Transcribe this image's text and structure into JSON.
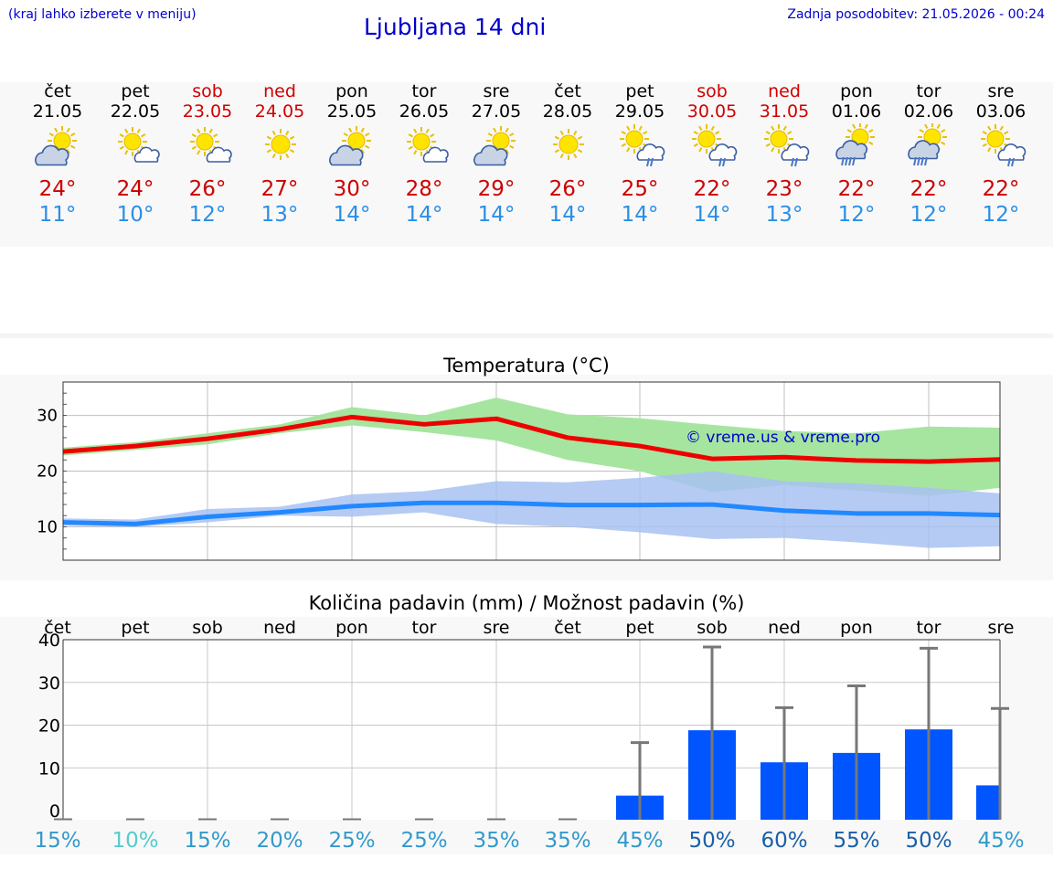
{
  "header": {
    "left_note": "(kraj lahko izberete v meniju)",
    "title": "Ljubljana 14 dni",
    "updated": "Zadnja posodobitev: 21.05.2026 - 00:24"
  },
  "colors": {
    "header_text": "#0000cc",
    "max_temp": "#cc0000",
    "min_temp": "#2a8ee8",
    "weekend": "#d00000",
    "precip_bar": "#0055ff"
  },
  "days": [
    {
      "name": "čet",
      "date": "21.05",
      "max": "24°",
      "min": "11°",
      "weekend": false,
      "icon": "sun-cloud-icon"
    },
    {
      "name": "pet",
      "date": "22.05",
      "max": "24°",
      "min": "10°",
      "weekend": false,
      "icon": "sun-small-cloud-icon"
    },
    {
      "name": "sob",
      "date": "23.05",
      "max": "26°",
      "min": "12°",
      "weekend": true,
      "icon": "sun-small-cloud-icon"
    },
    {
      "name": "ned",
      "date": "24.05",
      "max": "27°",
      "min": "13°",
      "weekend": true,
      "icon": "sun-icon"
    },
    {
      "name": "pon",
      "date": "25.05",
      "max": "30°",
      "min": "14°",
      "weekend": false,
      "icon": "sun-cloud-icon"
    },
    {
      "name": "tor",
      "date": "26.05",
      "max": "28°",
      "min": "14°",
      "weekend": false,
      "icon": "sun-small-cloud-icon"
    },
    {
      "name": "sre",
      "date": "27.05",
      "max": "29°",
      "min": "14°",
      "weekend": false,
      "icon": "sun-cloud-icon"
    },
    {
      "name": "čet",
      "date": "28.05",
      "max": "26°",
      "min": "14°",
      "weekend": false,
      "icon": "sun-icon"
    },
    {
      "name": "pet",
      "date": "29.05",
      "max": "25°",
      "min": "14°",
      "weekend": false,
      "icon": "sun-cloud-rain-icon"
    },
    {
      "name": "sob",
      "date": "30.05",
      "max": "22°",
      "min": "14°",
      "weekend": true,
      "icon": "sun-cloud-rain-icon"
    },
    {
      "name": "ned",
      "date": "31.05",
      "max": "23°",
      "min": "13°",
      "weekend": true,
      "icon": "sun-cloud-rain-icon"
    },
    {
      "name": "pon",
      "date": "01.06",
      "max": "22°",
      "min": "12°",
      "weekend": false,
      "icon": "sun-cloud-heavy-rain-icon"
    },
    {
      "name": "tor",
      "date": "02.06",
      "max": "22°",
      "min": "12°",
      "weekend": false,
      "icon": "sun-cloud-heavy-rain-icon"
    },
    {
      "name": "sre",
      "date": "03.06",
      "max": "22°",
      "min": "12°",
      "weekend": false,
      "icon": "sun-cloud-rain-icon"
    }
  ],
  "chart_data": [
    {
      "type": "line",
      "title": "Temperatura (°C)",
      "watermark": "© vreme.us & vreme.pro",
      "ylim": [
        4,
        36
      ],
      "yticks": [
        10,
        20,
        30
      ],
      "grid": true,
      "series": [
        {
          "values": [
            23.5,
            24.5,
            25.8,
            27.5,
            29.7,
            28.4,
            29.4,
            26.0,
            24.5,
            22.2,
            22.5,
            21.9,
            21.7,
            22.1
          ],
          "band": [
            [
              22.8,
              24.2
            ],
            [
              23.8,
              25.2
            ],
            [
              24.8,
              26.8
            ],
            [
              26.8,
              28.4
            ],
            [
              28.2,
              31.5
            ],
            [
              27.0,
              30.0
            ],
            [
              25.5,
              33.2
            ],
            [
              22.0,
              30.2
            ],
            [
              20.0,
              29.5
            ],
            [
              16.2,
              28.3
            ],
            [
              17.5,
              27.2
            ],
            [
              16.5,
              26.8
            ],
            [
              15.5,
              28.0
            ],
            [
              17.0,
              27.8
            ]
          ],
          "color": "#ee0000",
          "band_color": "#a6e5a0"
        },
        {
          "values": [
            10.8,
            10.5,
            11.8,
            12.6,
            13.7,
            14.3,
            14.3,
            13.9,
            13.9,
            14.0,
            12.9,
            12.4,
            12.4,
            12.1
          ],
          "band": [
            [
              10.2,
              11.5
            ],
            [
              10.0,
              11.3
            ],
            [
              10.8,
              13.2
            ],
            [
              12.0,
              13.6
            ],
            [
              11.8,
              15.8
            ],
            [
              12.6,
              16.4
            ],
            [
              10.5,
              18.2
            ],
            [
              10.0,
              18.0
            ],
            [
              9.0,
              18.8
            ],
            [
              7.8,
              20.0
            ],
            [
              8.0,
              18.2
            ],
            [
              7.2,
              17.8
            ],
            [
              6.2,
              17.0
            ],
            [
              6.5,
              16.0
            ]
          ],
          "color": "#2288ff",
          "band_color": "#a8c2f2"
        }
      ]
    },
    {
      "type": "bar",
      "title": "Količina padavin (mm) / Možnost padavin (%)",
      "ylim": [
        0,
        40
      ],
      "yticks": [
        0,
        10,
        20,
        30,
        40
      ],
      "categories": [
        "čet",
        "pet",
        "sob",
        "ned",
        "pon",
        "tor",
        "sre",
        "čet",
        "pet",
        "sob",
        "ned",
        "pon",
        "tor",
        "sre"
      ],
      "values": [
        0,
        0,
        0,
        0,
        0,
        0,
        0,
        0,
        3.5,
        18.8,
        11.3,
        13.5,
        19.0,
        5.9
      ],
      "error_high": [
        0,
        0,
        0,
        0,
        0,
        0,
        0,
        0,
        15.9,
        38.3,
        24.1,
        29.2,
        38.0,
        23.9
      ],
      "chance": [
        "15%",
        "10%",
        "15%",
        "20%",
        "25%",
        "25%",
        "35%",
        "35%",
        "45%",
        "50%",
        "60%",
        "55%",
        "50%",
        "45%"
      ],
      "chance_colors": [
        "#3399cc",
        "#55cccc",
        "#3399cc",
        "#3399cc",
        "#3399cc",
        "#3399cc",
        "#3399cc",
        "#3399cc",
        "#3399cc",
        "#1a5fa8",
        "#1a5fa8",
        "#1a5fa8",
        "#1a5fa8",
        "#3399cc"
      ]
    }
  ]
}
